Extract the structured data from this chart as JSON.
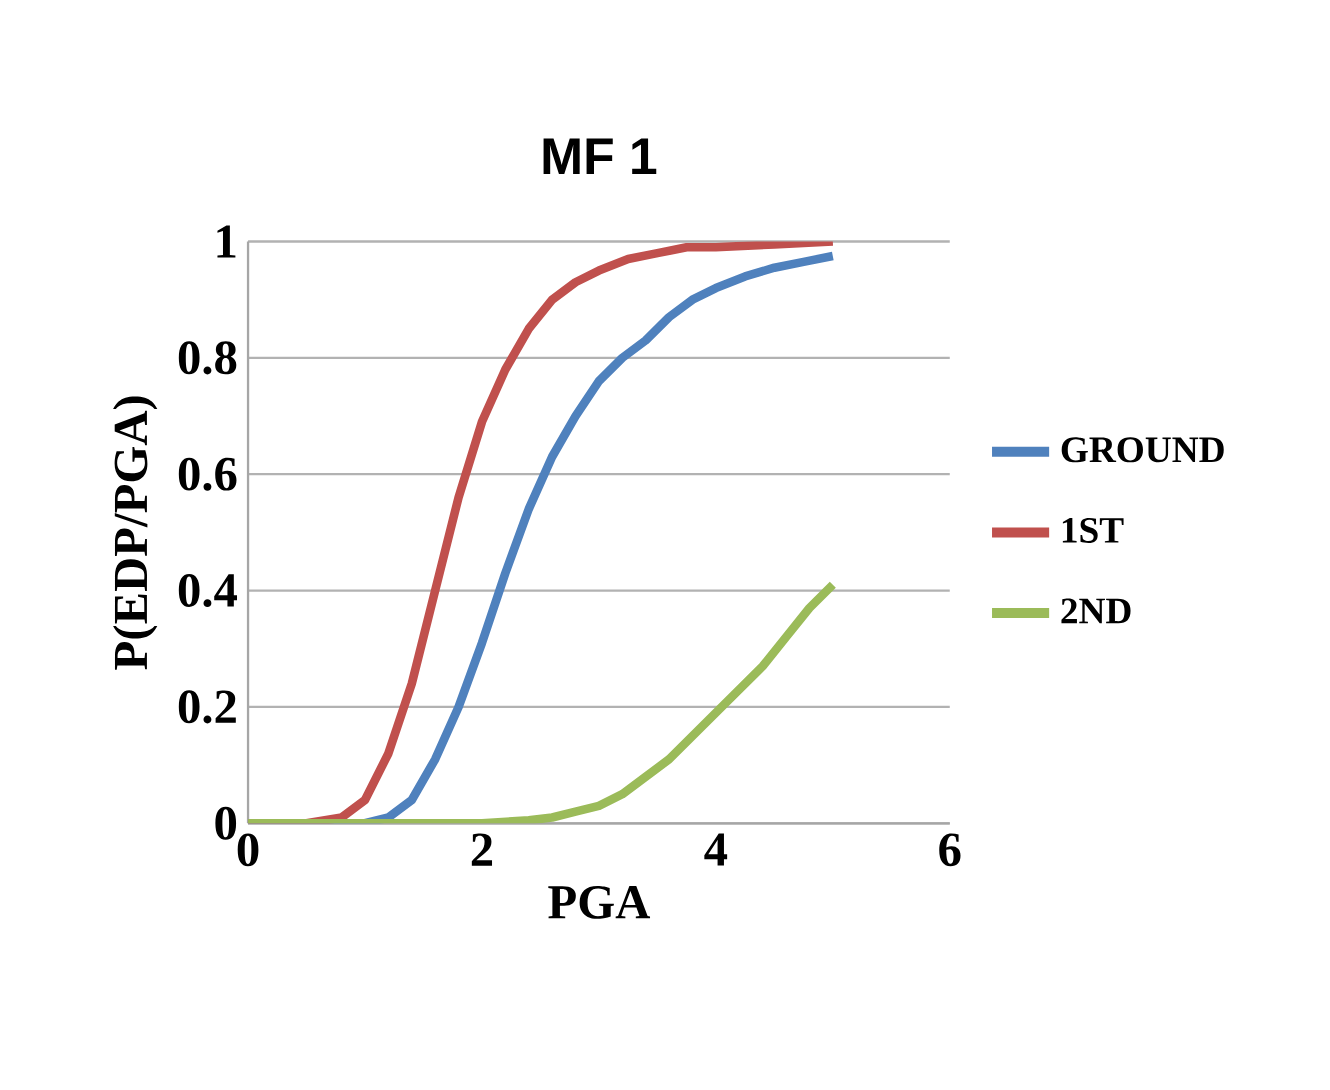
{
  "chart_data": {
    "type": "line",
    "title": "MF 1",
    "xlabel": "PGA",
    "ylabel": "P(EDP/PGA)",
    "xlim": [
      0,
      6
    ],
    "ylim": [
      0,
      1
    ],
    "xticks": [
      0,
      2,
      4,
      6
    ],
    "yticks": [
      0,
      0.2,
      0.4,
      0.6,
      0.8,
      1
    ],
    "grid": "y",
    "legend": "right",
    "marker": "none",
    "line_style": "solid",
    "series": [
      {
        "name": "GROUND",
        "color": "#4f81bd",
        "x": [
          0,
          0.5,
          1,
          1.2,
          1.4,
          1.6,
          1.8,
          2,
          2.2,
          2.4,
          2.6,
          2.8,
          3,
          3.2,
          3.4,
          3.6,
          3.8,
          4,
          4.25,
          4.5,
          4.75,
          5
        ],
        "values": [
          0,
          0,
          0,
          0.01,
          0.04,
          0.11,
          0.2,
          0.31,
          0.43,
          0.54,
          0.63,
          0.7,
          0.76,
          0.8,
          0.83,
          0.87,
          0.9,
          0.92,
          0.94,
          0.955,
          0.965,
          0.975
        ]
      },
      {
        "name": "1ST",
        "color": "#c0504d",
        "x": [
          0,
          0.5,
          0.8,
          1,
          1.2,
          1.4,
          1.6,
          1.8,
          2,
          2.2,
          2.4,
          2.6,
          2.8,
          3,
          3.25,
          3.5,
          3.75,
          4,
          4.5,
          5
        ],
        "values": [
          0,
          0,
          0.01,
          0.04,
          0.12,
          0.24,
          0.4,
          0.56,
          0.69,
          0.78,
          0.85,
          0.9,
          0.93,
          0.95,
          0.97,
          0.98,
          0.99,
          0.99,
          0.995,
          1
        ]
      },
      {
        "name": "2ND",
        "color": "#9bbb59",
        "x": [
          0,
          1,
          2,
          2.4,
          2.6,
          2.8,
          3,
          3.2,
          3.4,
          3.6,
          3.8,
          4,
          4.2,
          4.4,
          4.6,
          4.8,
          5
        ],
        "values": [
          0,
          0,
          0,
          0.005,
          0.01,
          0.02,
          0.03,
          0.05,
          0.08,
          0.11,
          0.15,
          0.19,
          0.23,
          0.27,
          0.32,
          0.37,
          0.41
        ]
      }
    ]
  }
}
